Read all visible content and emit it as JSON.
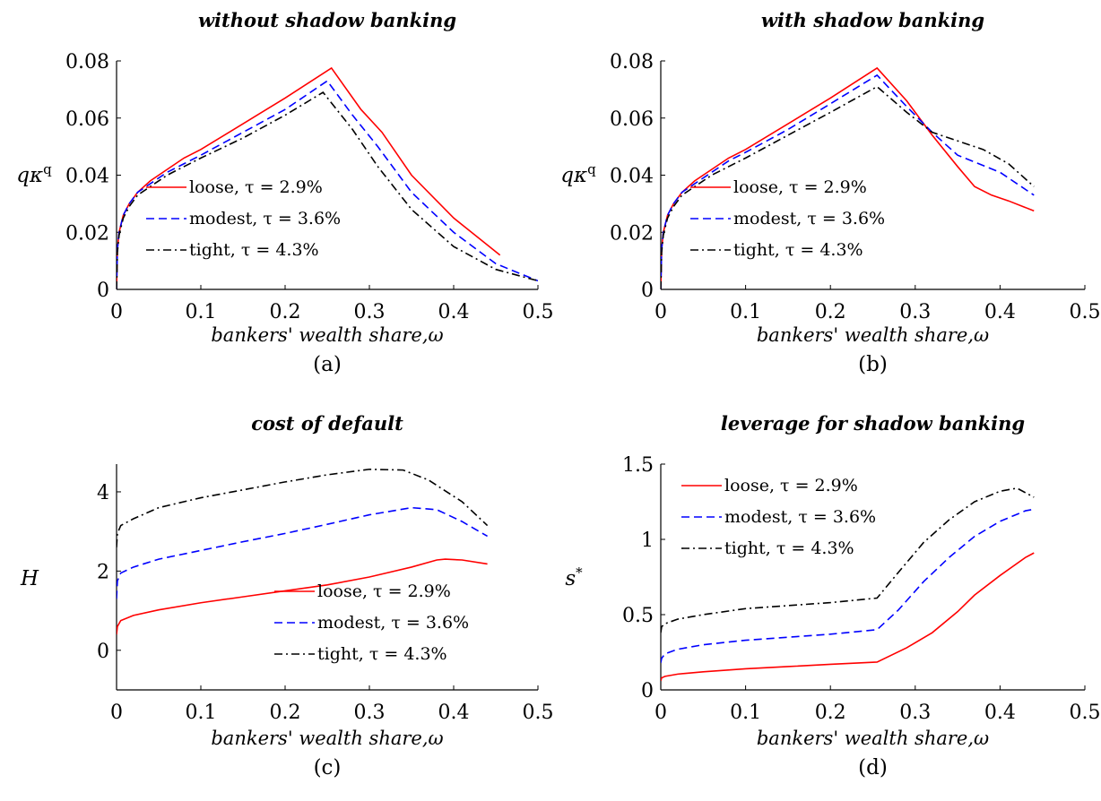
{
  "chart_data": [
    {
      "type": "line",
      "title": "without shadow banking",
      "xlabel": "bankers' wealth share,ω",
      "ylabel": "qκ^q",
      "caption": "(a)",
      "xlim": [
        0,
        0.5
      ],
      "ylim": [
        0,
        0.08
      ],
      "xticks": [
        {
          "v": 0,
          "label": "0"
        },
        {
          "v": 0.1,
          "label": "0.1"
        },
        {
          "v": 0.2,
          "label": "0.2"
        },
        {
          "v": 0.3,
          "label": "0.3"
        },
        {
          "v": 0.4,
          "label": "0.4"
        },
        {
          "v": 0.5,
          "label": "0.5"
        }
      ],
      "yticks": [
        {
          "v": 0,
          "label": "0"
        },
        {
          "v": 0.02,
          "label": "0.02"
        },
        {
          "v": 0.04,
          "label": "0.04"
        },
        {
          "v": 0.06,
          "label": "0.06"
        },
        {
          "v": 0.08,
          "label": "0.08"
        }
      ],
      "legend_position": "center-left",
      "grid": false,
      "series": [
        {
          "name": "loose, τ = 2.9%",
          "color": "#ff0000",
          "style": "solid",
          "x": [
            0,
            0.001,
            0.003,
            0.008,
            0.015,
            0.025,
            0.04,
            0.06,
            0.08,
            0.1,
            0.15,
            0.2,
            0.255,
            0.29,
            0.315,
            0.35,
            0.4,
            0.455
          ],
          "y": [
            0,
            0.014,
            0.02,
            0.026,
            0.03,
            0.034,
            0.038,
            0.042,
            0.046,
            0.049,
            0.058,
            0.067,
            0.0775,
            0.063,
            0.055,
            0.04,
            0.025,
            0.012
          ]
        },
        {
          "name": "modest, τ = 3.6%",
          "color": "#0000ff",
          "style": "dashed",
          "x": [
            0,
            0.001,
            0.003,
            0.008,
            0.015,
            0.025,
            0.04,
            0.06,
            0.08,
            0.1,
            0.15,
            0.2,
            0.25,
            0.28,
            0.31,
            0.35,
            0.4,
            0.45,
            0.5
          ],
          "y": [
            0,
            0.014,
            0.02,
            0.026,
            0.03,
            0.034,
            0.037,
            0.041,
            0.044,
            0.047,
            0.055,
            0.063,
            0.073,
            0.061,
            0.05,
            0.034,
            0.02,
            0.009,
            0.003
          ]
        },
        {
          "name": "tight, τ = 4.3%",
          "color": "#000000",
          "style": "dashdot",
          "x": [
            0,
            0.001,
            0.003,
            0.008,
            0.015,
            0.025,
            0.04,
            0.06,
            0.08,
            0.1,
            0.15,
            0.2,
            0.245,
            0.28,
            0.31,
            0.35,
            0.4,
            0.45,
            0.5
          ],
          "y": [
            0,
            0.013,
            0.019,
            0.025,
            0.029,
            0.033,
            0.036,
            0.04,
            0.043,
            0.046,
            0.053,
            0.061,
            0.069,
            0.056,
            0.043,
            0.028,
            0.015,
            0.007,
            0.003
          ]
        }
      ]
    },
    {
      "type": "line",
      "title": "with shadow banking",
      "xlabel": "bankers' wealth share,ω",
      "ylabel": "qκ^q",
      "caption": "(b)",
      "xlim": [
        0,
        0.5
      ],
      "ylim": [
        0,
        0.08
      ],
      "xticks": [
        {
          "v": 0,
          "label": "0"
        },
        {
          "v": 0.1,
          "label": "0.1"
        },
        {
          "v": 0.2,
          "label": "0.2"
        },
        {
          "v": 0.3,
          "label": "0.3"
        },
        {
          "v": 0.4,
          "label": "0.4"
        },
        {
          "v": 0.5,
          "label": "0.5"
        }
      ],
      "yticks": [
        {
          "v": 0,
          "label": "0"
        },
        {
          "v": 0.02,
          "label": "0.02"
        },
        {
          "v": 0.04,
          "label": "0.04"
        },
        {
          "v": 0.06,
          "label": "0.06"
        },
        {
          "v": 0.08,
          "label": "0.08"
        }
      ],
      "legend_position": "center-left",
      "grid": false,
      "series": [
        {
          "name": "loose, τ = 2.9%",
          "color": "#ff0000",
          "style": "solid",
          "x": [
            0,
            0.001,
            0.003,
            0.008,
            0.015,
            0.025,
            0.04,
            0.06,
            0.08,
            0.1,
            0.15,
            0.2,
            0.255,
            0.29,
            0.32,
            0.35,
            0.37,
            0.39,
            0.41,
            0.44
          ],
          "y": [
            0,
            0.014,
            0.02,
            0.026,
            0.03,
            0.034,
            0.038,
            0.042,
            0.046,
            0.049,
            0.058,
            0.067,
            0.0775,
            0.066,
            0.054,
            0.043,
            0.036,
            0.033,
            0.031,
            0.0275
          ]
        },
        {
          "name": "modest, τ = 3.6%",
          "color": "#0000ff",
          "style": "dashed",
          "x": [
            0,
            0.001,
            0.003,
            0.008,
            0.015,
            0.025,
            0.04,
            0.06,
            0.08,
            0.1,
            0.15,
            0.2,
            0.255,
            0.29,
            0.32,
            0.35,
            0.4,
            0.44
          ],
          "y": [
            0,
            0.014,
            0.02,
            0.026,
            0.03,
            0.034,
            0.037,
            0.041,
            0.045,
            0.048,
            0.056,
            0.065,
            0.075,
            0.064,
            0.055,
            0.047,
            0.041,
            0.033
          ]
        },
        {
          "name": "tight, τ = 4.3%",
          "color": "#000000",
          "style": "dashdot",
          "x": [
            0,
            0.001,
            0.003,
            0.008,
            0.015,
            0.025,
            0.04,
            0.06,
            0.08,
            0.1,
            0.15,
            0.2,
            0.255,
            0.29,
            0.32,
            0.35,
            0.38,
            0.41,
            0.44
          ],
          "y": [
            0,
            0.013,
            0.019,
            0.025,
            0.029,
            0.033,
            0.036,
            0.04,
            0.043,
            0.046,
            0.054,
            0.062,
            0.071,
            0.062,
            0.055,
            0.052,
            0.049,
            0.044,
            0.036
          ]
        }
      ]
    },
    {
      "type": "line",
      "title": "cost of default",
      "xlabel": "bankers' wealth share,ω",
      "ylabel": "H",
      "caption": "(c)",
      "xlim": [
        0,
        0.5
      ],
      "ylim": [
        -1,
        4.7
      ],
      "xticks": [
        {
          "v": 0,
          "label": "0"
        },
        {
          "v": 0.1,
          "label": "0.1"
        },
        {
          "v": 0.2,
          "label": "0.2"
        },
        {
          "v": 0.3,
          "label": "0.3"
        },
        {
          "v": 0.4,
          "label": "0.4"
        },
        {
          "v": 0.5,
          "label": "0.5"
        }
      ],
      "yticks": [
        {
          "v": 0,
          "label": "0"
        },
        {
          "v": 2,
          "label": "2"
        },
        {
          "v": 4,
          "label": "4"
        }
      ],
      "legend_position": "bottom-right",
      "grid": false,
      "series": [
        {
          "name": "loose, τ = 2.9%",
          "color": "#ff0000",
          "style": "solid",
          "x": [
            0,
            0.001,
            0.005,
            0.02,
            0.05,
            0.1,
            0.15,
            0.2,
            0.25,
            0.3,
            0.35,
            0.38,
            0.39,
            0.41,
            0.44
          ],
          "y": [
            0.4,
            0.6,
            0.75,
            0.88,
            1.02,
            1.2,
            1.35,
            1.5,
            1.65,
            1.85,
            2.1,
            2.28,
            2.3,
            2.28,
            2.18
          ]
        },
        {
          "name": "modest, τ = 3.6%",
          "color": "#0000ff",
          "style": "dashed",
          "x": [
            0,
            0.001,
            0.005,
            0.02,
            0.05,
            0.1,
            0.15,
            0.2,
            0.25,
            0.3,
            0.35,
            0.38,
            0.41,
            0.44
          ],
          "y": [
            1.3,
            1.75,
            1.95,
            2.1,
            2.3,
            2.52,
            2.74,
            2.95,
            3.18,
            3.42,
            3.6,
            3.55,
            3.25,
            2.88
          ]
        },
        {
          "name": "tight, τ = 4.3%",
          "color": "#000000",
          "style": "dashdot",
          "x": [
            0,
            0.001,
            0.005,
            0.02,
            0.05,
            0.1,
            0.15,
            0.2,
            0.25,
            0.3,
            0.34,
            0.37,
            0.41,
            0.44
          ],
          "y": [
            2.6,
            2.95,
            3.15,
            3.32,
            3.6,
            3.85,
            4.05,
            4.25,
            4.43,
            4.57,
            4.55,
            4.3,
            3.75,
            3.15
          ]
        }
      ]
    },
    {
      "type": "line",
      "title": "leverage for shadow banking",
      "xlabel": "bankers' wealth share,ω",
      "ylabel": "s*",
      "caption": "(d)",
      "xlim": [
        0,
        0.5
      ],
      "ylim": [
        0,
        1.5
      ],
      "xticks": [
        {
          "v": 0,
          "label": "0"
        },
        {
          "v": 0.1,
          "label": "0.1"
        },
        {
          "v": 0.2,
          "label": "0.2"
        },
        {
          "v": 0.3,
          "label": "0.3"
        },
        {
          "v": 0.4,
          "label": "0.4"
        },
        {
          "v": 0.5,
          "label": "0.5"
        }
      ],
      "yticks": [
        {
          "v": 0,
          "label": "0"
        },
        {
          "v": 0.5,
          "label": "0.5"
        },
        {
          "v": 1,
          "label": "1"
        },
        {
          "v": 1.5,
          "label": "1.5"
        }
      ],
      "legend_position": "top-left",
      "grid": false,
      "series": [
        {
          "name": "loose, τ = 2.9%",
          "color": "#ff0000",
          "style": "solid",
          "x": [
            0,
            0.001,
            0.005,
            0.02,
            0.05,
            0.1,
            0.15,
            0.2,
            0.255,
            0.29,
            0.32,
            0.35,
            0.37,
            0.4,
            0.43,
            0.44
          ],
          "y": [
            0.06,
            0.08,
            0.09,
            0.105,
            0.12,
            0.14,
            0.155,
            0.17,
            0.185,
            0.28,
            0.38,
            0.52,
            0.63,
            0.76,
            0.88,
            0.91
          ]
        },
        {
          "name": "modest, τ = 3.6%",
          "color": "#0000ff",
          "style": "dashed",
          "x": [
            0,
            0.001,
            0.005,
            0.02,
            0.05,
            0.1,
            0.15,
            0.2,
            0.255,
            0.28,
            0.31,
            0.34,
            0.37,
            0.4,
            0.43,
            0.44
          ],
          "y": [
            0.18,
            0.21,
            0.24,
            0.27,
            0.3,
            0.33,
            0.35,
            0.37,
            0.4,
            0.53,
            0.72,
            0.88,
            1.02,
            1.12,
            1.19,
            1.2
          ]
        },
        {
          "name": "tight, τ = 4.3%",
          "color": "#000000",
          "style": "dashdot",
          "x": [
            0,
            0.001,
            0.005,
            0.02,
            0.05,
            0.1,
            0.15,
            0.2,
            0.255,
            0.28,
            0.31,
            0.34,
            0.37,
            0.4,
            0.42,
            0.44
          ],
          "y": [
            0.38,
            0.42,
            0.44,
            0.47,
            0.5,
            0.54,
            0.56,
            0.58,
            0.61,
            0.78,
            0.98,
            1.13,
            1.25,
            1.32,
            1.34,
            1.28
          ]
        }
      ]
    }
  ]
}
